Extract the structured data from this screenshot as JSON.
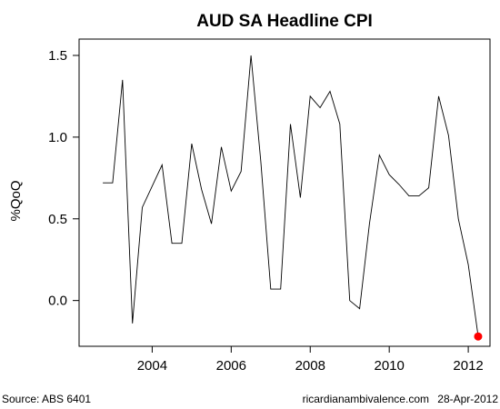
{
  "chart_data": {
    "type": "line",
    "title": "AUD SA Headline CPI",
    "xlabel": "",
    "ylabel": "%QoQ",
    "xlim": [
      2002.15,
      2012.55
    ],
    "ylim": [
      -0.28,
      1.6
    ],
    "x_ticks": [
      2004,
      2006,
      2008,
      2010,
      2012
    ],
    "x_tick_labels": [
      "2004",
      "2006",
      "2008",
      "2010",
      "2012"
    ],
    "y_ticks": [
      0.0,
      0.5,
      1.0,
      1.5
    ],
    "y_tick_labels": [
      "0.0",
      "0.5",
      "1.0",
      "1.5"
    ],
    "grid": false,
    "series": [
      {
        "color": "#000000",
        "x": [
          2002.75,
          2003.0,
          2003.25,
          2003.5,
          2003.75,
          2004.0,
          2004.25,
          2004.5,
          2004.75,
          2005.0,
          2005.25,
          2005.5,
          2005.75,
          2006.0,
          2006.25,
          2006.5,
          2006.75,
          2007.0,
          2007.25,
          2007.5,
          2007.75,
          2008.0,
          2008.25,
          2008.5,
          2008.75,
          2009.0,
          2009.25,
          2009.5,
          2009.75,
          2010.0,
          2010.25,
          2010.5,
          2010.75,
          2011.0,
          2011.25,
          2011.5,
          2011.75,
          2012.0,
          2012.25
        ],
        "values": [
          0.72,
          0.72,
          1.35,
          -0.14,
          0.57,
          0.7,
          0.83,
          0.35,
          0.35,
          0.96,
          0.68,
          0.47,
          0.94,
          0.67,
          0.79,
          1.5,
          0.85,
          0.07,
          0.07,
          1.08,
          0.63,
          1.25,
          1.18,
          1.28,
          1.08,
          0.0,
          -0.05,
          0.47,
          0.89,
          0.77,
          0.71,
          0.64,
          0.64,
          0.69,
          1.25,
          1.01,
          0.5,
          0.22,
          -0.22
        ]
      }
    ],
    "highlight_point": {
      "x": 2012.25,
      "y": -0.22,
      "color": "#ff0000"
    }
  },
  "footer": {
    "source": "Source: ABS 6401",
    "site": "ricardianambivalence.com",
    "date": "28-Apr-2012"
  }
}
